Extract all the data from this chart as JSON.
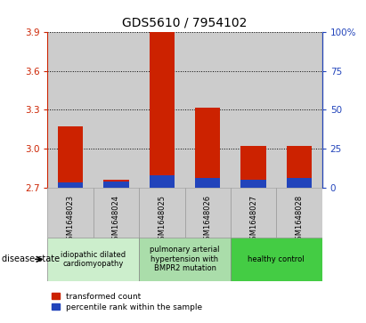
{
  "title": "GDS5610 / 7954102",
  "samples": [
    "GSM1648023",
    "GSM1648024",
    "GSM1648025",
    "GSM1648026",
    "GSM1648027",
    "GSM1648028"
  ],
  "transformed_count": [
    3.17,
    2.76,
    3.9,
    3.32,
    3.02,
    3.02
  ],
  "percentile_rank": [
    3,
    4,
    8,
    6,
    5,
    6
  ],
  "ymin": 2.7,
  "ymax": 3.9,
  "yticks": [
    2.7,
    3.0,
    3.3,
    3.6,
    3.9
  ],
  "right_yticks": [
    0,
    25,
    50,
    75,
    100
  ],
  "right_yticklabels": [
    "0",
    "25",
    "50",
    "75",
    "100%"
  ],
  "bar_width": 0.55,
  "red_color": "#cc2200",
  "blue_color": "#2244bb",
  "disease_groups": [
    {
      "label": "idiopathic dilated\ncardiomyopathy",
      "indices": [
        0,
        1
      ],
      "bg_color": "#cceecc"
    },
    {
      "label": "pulmonary arterial\nhypertension with\nBMPR2 mutation",
      "indices": [
        2,
        3
      ],
      "bg_color": "#aaddaa"
    },
    {
      "label": "healthy control",
      "indices": [
        4,
        5
      ],
      "bg_color": "#44cc44"
    }
  ],
  "legend_red": "transformed count",
  "legend_blue": "percentile rank within the sample",
  "disease_state_label": "disease state",
  "bar_area_bg": "#cccccc",
  "title_fontsize": 10,
  "tick_fontsize": 7.5,
  "sample_fontsize": 6.0
}
